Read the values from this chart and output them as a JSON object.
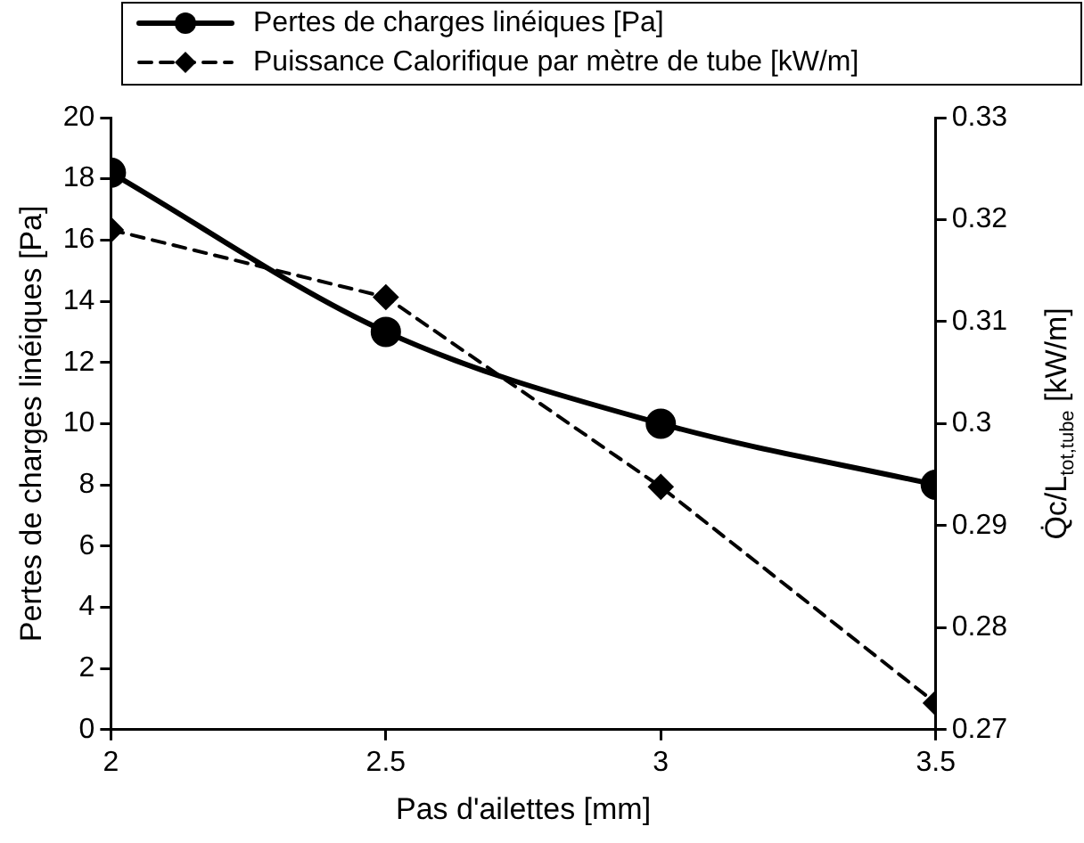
{
  "chart_data": {
    "type": "line",
    "xlabel": "Pas d'ailettes [mm]",
    "ylabel": "Pertes de charges linéiques [Pa]",
    "y2label": "Q̇c/L$_{tot,tube}$ [kW/m]",
    "x": [
      2,
      2.5,
      3,
      3.5
    ],
    "series": [
      {
        "name": "Pertes de charges linéiques [Pa]",
        "color": "#000000",
        "values": [
          18.2,
          13.0,
          10.0,
          8.0
        ],
        "marker": "circle",
        "line_style": "solid"
      },
      {
        "name": "Puissance Calorifique par mètre de tube [kW/m]",
        "color": "#000000",
        "values": [
          0.319,
          0.3124,
          0.2938,
          0.2726
        ],
        "marker": "diamond",
        "line_style": "dashed",
        "axis": "y2"
      }
    ],
    "xlim": [
      2,
      3.5
    ],
    "xticks": [
      2,
      2.5,
      3,
      3.5
    ],
    "ylim": [
      0,
      20
    ],
    "yticks": [
      0,
      2,
      4,
      6,
      8,
      10,
      12,
      14,
      16,
      18,
      20
    ],
    "y2lim": [
      0.27,
      0.33
    ],
    "y2ticks": [
      0.27,
      0.28,
      0.29,
      0.3,
      0.31,
      0.32,
      0.33
    ],
    "grid": false,
    "legend": "top"
  }
}
